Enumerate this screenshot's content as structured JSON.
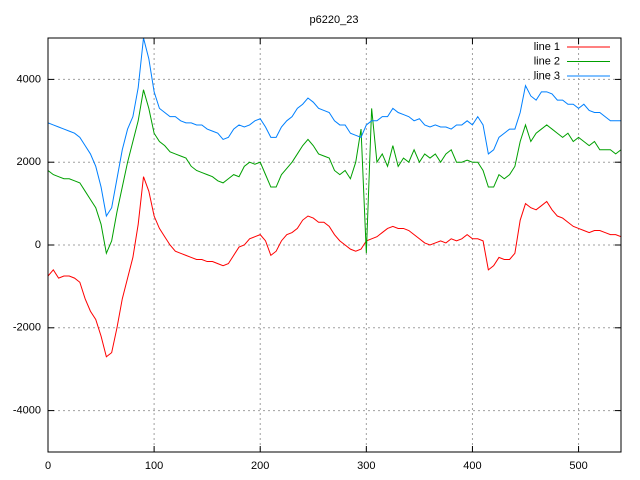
{
  "chart_data": {
    "type": "line",
    "title": "p6220_23",
    "x": [
      0,
      5,
      10,
      15,
      20,
      25,
      30,
      35,
      40,
      45,
      50,
      55,
      60,
      65,
      70,
      75,
      80,
      85,
      90,
      95,
      100,
      105,
      110,
      115,
      120,
      125,
      130,
      135,
      140,
      145,
      150,
      155,
      160,
      165,
      170,
      175,
      180,
      185,
      190,
      195,
      200,
      205,
      210,
      215,
      220,
      225,
      230,
      235,
      240,
      245,
      250,
      255,
      260,
      265,
      270,
      275,
      280,
      285,
      290,
      295,
      300,
      305,
      310,
      315,
      320,
      325,
      330,
      335,
      340,
      345,
      350,
      355,
      360,
      365,
      370,
      375,
      380,
      385,
      390,
      395,
      400,
      405,
      410,
      415,
      420,
      425,
      430,
      435,
      440,
      445,
      450,
      455,
      460,
      465,
      470,
      475,
      480,
      485,
      490,
      495,
      500,
      505,
      510,
      515,
      520,
      525,
      530,
      535,
      540
    ],
    "series": [
      {
        "name": "line 1",
        "color": "#ff0000",
        "values": [
          -750,
          -600,
          -800,
          -750,
          -750,
          -800,
          -900,
          -1300,
          -1600,
          -1800,
          -2200,
          -2700,
          -2600,
          -2000,
          -1300,
          -800,
          -300,
          500,
          1650,
          1300,
          700,
          400,
          200,
          0,
          -150,
          -200,
          -250,
          -300,
          -350,
          -350,
          -400,
          -400,
          -450,
          -500,
          -450,
          -250,
          -50,
          0,
          150,
          200,
          250,
          100,
          -250,
          -150,
          100,
          250,
          300,
          400,
          600,
          700,
          650,
          550,
          550,
          450,
          250,
          100,
          0,
          -100,
          -150,
          -100,
          100,
          150,
          200,
          300,
          400,
          450,
          400,
          400,
          350,
          250,
          150,
          50,
          0,
          50,
          100,
          50,
          150,
          100,
          150,
          250,
          150,
          150,
          100,
          -600,
          -500,
          -300,
          -350,
          -350,
          -200,
          600,
          1000,
          900,
          850,
          950,
          1050,
          850,
          700,
          650,
          550,
          450,
          400,
          350,
          300,
          350,
          350,
          300,
          250,
          250,
          200
        ]
      },
      {
        "name": "line 2",
        "color": "#00a000",
        "values": [
          1800,
          1700,
          1650,
          1600,
          1600,
          1550,
          1500,
          1300,
          1100,
          900,
          500,
          -200,
          100,
          800,
          1400,
          2000,
          2500,
          3000,
          3750,
          3300,
          2700,
          2500,
          2400,
          2250,
          2200,
          2150,
          2100,
          1900,
          1800,
          1750,
          1700,
          1650,
          1550,
          1500,
          1600,
          1700,
          1650,
          1900,
          2000,
          1950,
          2000,
          1700,
          1400,
          1400,
          1700,
          1850,
          2000,
          2200,
          2400,
          2550,
          2400,
          2200,
          2150,
          2100,
          1800,
          1700,
          1800,
          1600,
          2000,
          2800,
          -200,
          3300,
          2000,
          2200,
          1900,
          2400,
          1900,
          2100,
          2000,
          2300,
          2000,
          2200,
          2100,
          2200,
          2000,
          2200,
          2300,
          2000,
          2000,
          2050,
          2000,
          2000,
          1800,
          1400,
          1400,
          1700,
          1600,
          1700,
          1900,
          2500,
          2900,
          2500,
          2700,
          2800,
          2900,
          2800,
          2700,
          2600,
          2700,
          2500,
          2600,
          2500,
          2400,
          2500,
          2300,
          2300,
          2300,
          2200,
          2300
        ]
      },
      {
        "name": "line 3",
        "color": "#0080ff",
        "values": [
          2950,
          2900,
          2850,
          2800,
          2750,
          2700,
          2600,
          2400,
          2200,
          1900,
          1400,
          700,
          900,
          1600,
          2300,
          2800,
          3100,
          3800,
          5000,
          4500,
          3700,
          3300,
          3200,
          3100,
          3100,
          3000,
          2950,
          2950,
          2900,
          2900,
          2800,
          2750,
          2700,
          2550,
          2600,
          2800,
          2900,
          2850,
          2900,
          3000,
          3050,
          2850,
          2600,
          2600,
          2850,
          3000,
          3100,
          3300,
          3400,
          3550,
          3450,
          3300,
          3250,
          3200,
          3000,
          2900,
          2900,
          2700,
          2650,
          2600,
          2900,
          3000,
          3000,
          3100,
          3100,
          3300,
          3200,
          3150,
          3100,
          3000,
          3050,
          2900,
          2850,
          2900,
          2850,
          2850,
          2800,
          2900,
          2900,
          3000,
          2900,
          3100,
          2900,
          2200,
          2300,
          2600,
          2700,
          2800,
          2800,
          3200,
          3850,
          3600,
          3500,
          3700,
          3700,
          3650,
          3500,
          3500,
          3400,
          3400,
          3300,
          3400,
          3250,
          3200,
          3200,
          3100,
          3000,
          3000,
          3000
        ]
      }
    ],
    "xlim": [
      0,
      540
    ],
    "ylim": [
      -5000,
      5000
    ],
    "xticks": [
      0,
      100,
      200,
      300,
      400,
      500
    ],
    "yticks": [
      -4000,
      -2000,
      0,
      2000,
      4000
    ],
    "grid": true,
    "legend": "top-right"
  }
}
